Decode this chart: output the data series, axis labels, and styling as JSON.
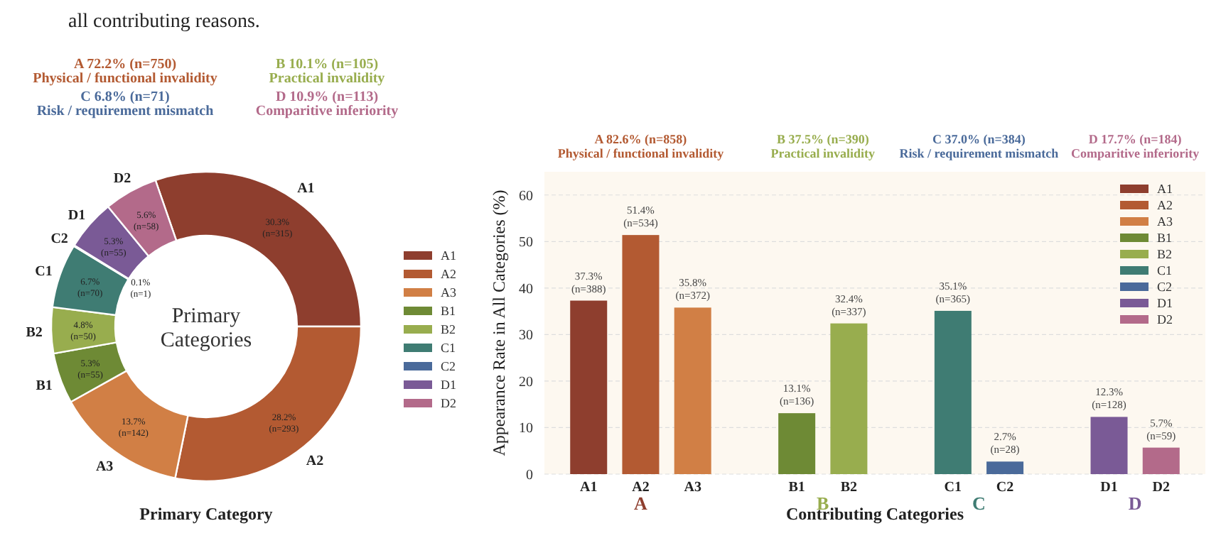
{
  "chart_data": [
    {
      "type": "donut",
      "title": "Primary Category",
      "categories": [
        "A1",
        "A2",
        "A3",
        "B1",
        "B2",
        "C1",
        "C2",
        "D1",
        "D2"
      ],
      "values": [
        30.3,
        28.2,
        13.7,
        5.3,
        4.8,
        6.7,
        0.1,
        5.3,
        5.6
      ],
      "colors": [
        "#8e3e2e",
        "#b35a32",
        "#d17f45",
        "#6e8a35",
        "#98ad4e",
        "#3f7c73",
        "#4a6a9a",
        "#7a5a96",
        "#b36a8a"
      ],
      "value_labels": [
        "30.3%\n(n=315)",
        "28.2%\n(n=293)",
        "13.7%\n(n=142)",
        "5.3%\n(n=55)",
        "4.8%\n(n=50)",
        "6.7%\n(n=70)",
        "0.1%\n(n=1)",
        "5.3%\n(n=55)",
        "5.6%\n(n=58)"
      ],
      "annotations": [
        "A 72.2% (n=750)\nPhysical / functional invalidity",
        "B 10.1% (n=105)\nPractical invalidity",
        "C 6.8% (n=71)\nRisk / requirement mismatch",
        "D 10.9% (n=113)\nComparitive inferiority",
        "Primary\nCategories",
        "all contributing reasons."
      ],
      "legend": "right"
    },
    {
      "type": "bar",
      "title": "Contributing Categories",
      "ylabel": "Appearance Rate in All Categories (%)",
      "categories": [
        "A1",
        "A2",
        "A3",
        null,
        "B1",
        "B2",
        null,
        "C1",
        "C2",
        null,
        "D1",
        "D2"
      ],
      "series": [
        {
          "name": "A1",
          "color": "#8e3e2e",
          "values": [
            37.3,
            null,
            null,
            null,
            null,
            null,
            null,
            null,
            null,
            null,
            null,
            null
          ],
          "value_labels": [
            "37.3%\n(n=388)",
            null,
            null,
            null,
            null,
            null,
            null,
            null,
            null,
            null,
            null,
            null
          ]
        },
        {
          "name": "A2",
          "color": "#b35a32",
          "values": [
            null,
            51.4,
            null,
            null,
            null,
            null,
            null,
            null,
            null,
            null,
            null,
            null
          ],
          "value_labels": [
            null,
            "51.4%\n(n=534)",
            null,
            null,
            null,
            null,
            null,
            null,
            null,
            null,
            null,
            null
          ]
        },
        {
          "name": "A3",
          "color": "#d17f45",
          "values": [
            null,
            null,
            35.8,
            null,
            null,
            null,
            null,
            null,
            null,
            null,
            null,
            null
          ],
          "value_labels": [
            null,
            null,
            "35.8%\n(n=372)",
            null,
            null,
            null,
            null,
            null,
            null,
            null,
            null,
            null
          ]
        },
        {
          "name": "B1",
          "color": "#6e8a35",
          "values": [
            null,
            null,
            null,
            null,
            13.1,
            null,
            null,
            null,
            null,
            null,
            null,
            null
          ],
          "value_labels": [
            null,
            null,
            null,
            null,
            "13.1%\n(n=136)",
            null,
            null,
            null,
            null,
            null,
            null,
            null
          ]
        },
        {
          "name": "B2",
          "color": "#98ad4e",
          "values": [
            null,
            null,
            null,
            null,
            null,
            32.4,
            null,
            null,
            null,
            null,
            null,
            null
          ],
          "value_labels": [
            null,
            null,
            null,
            null,
            null,
            "32.4%\n(n=337)",
            null,
            null,
            null,
            null,
            null,
            null
          ]
        },
        {
          "name": "C1",
          "color": "#3f7c73",
          "values": [
            null,
            null,
            null,
            null,
            null,
            null,
            null,
            35.1,
            null,
            null,
            null,
            null
          ],
          "value_labels": [
            null,
            null,
            null,
            null,
            null,
            null,
            null,
            "35.1%\n(n=365)",
            null,
            null,
            null,
            null
          ]
        },
        {
          "name": "C2",
          "color": "#4a6a9a",
          "values": [
            null,
            null,
            null,
            null,
            null,
            null,
            null,
            null,
            2.7,
            null,
            null,
            null
          ],
          "value_labels": [
            null,
            null,
            null,
            null,
            null,
            null,
            null,
            null,
            "2.7%\n(n=28)",
            null,
            null,
            null
          ]
        },
        {
          "name": "D1",
          "color": "#7a5a96",
          "values": [
            null,
            null,
            null,
            null,
            null,
            null,
            null,
            null,
            null,
            null,
            12.3,
            null
          ],
          "value_labels": [
            null,
            null,
            null,
            null,
            null,
            null,
            null,
            null,
            null,
            null,
            "12.3%\n(n=128)",
            null
          ]
        },
        {
          "name": "D2",
          "color": "#b36a8a",
          "values": [
            null,
            null,
            null,
            null,
            null,
            null,
            null,
            null,
            null,
            null,
            null,
            5.7
          ],
          "value_labels": [
            null,
            null,
            null,
            null,
            null,
            null,
            null,
            null,
            null,
            null,
            null,
            "5.7%\n(n=59)"
          ]
        }
      ],
      "annotations": [
        "A 82.6% (n=858)\nPhysical / functional invalidity",
        "B 37.5% (n=390)\nPractical invalidity",
        "C 37.0% (n=384)\nRisk / requirement mismatch",
        "D 17.7% (n=184)\nComparitive inferiority",
        "A",
        "B",
        "C",
        "D"
      ],
      "ylim": [
        0,
        65
      ],
      "yticks": [
        0,
        10,
        20,
        30,
        40,
        50,
        60
      ],
      "grid": "y",
      "legend": "top right"
    }
  ]
}
